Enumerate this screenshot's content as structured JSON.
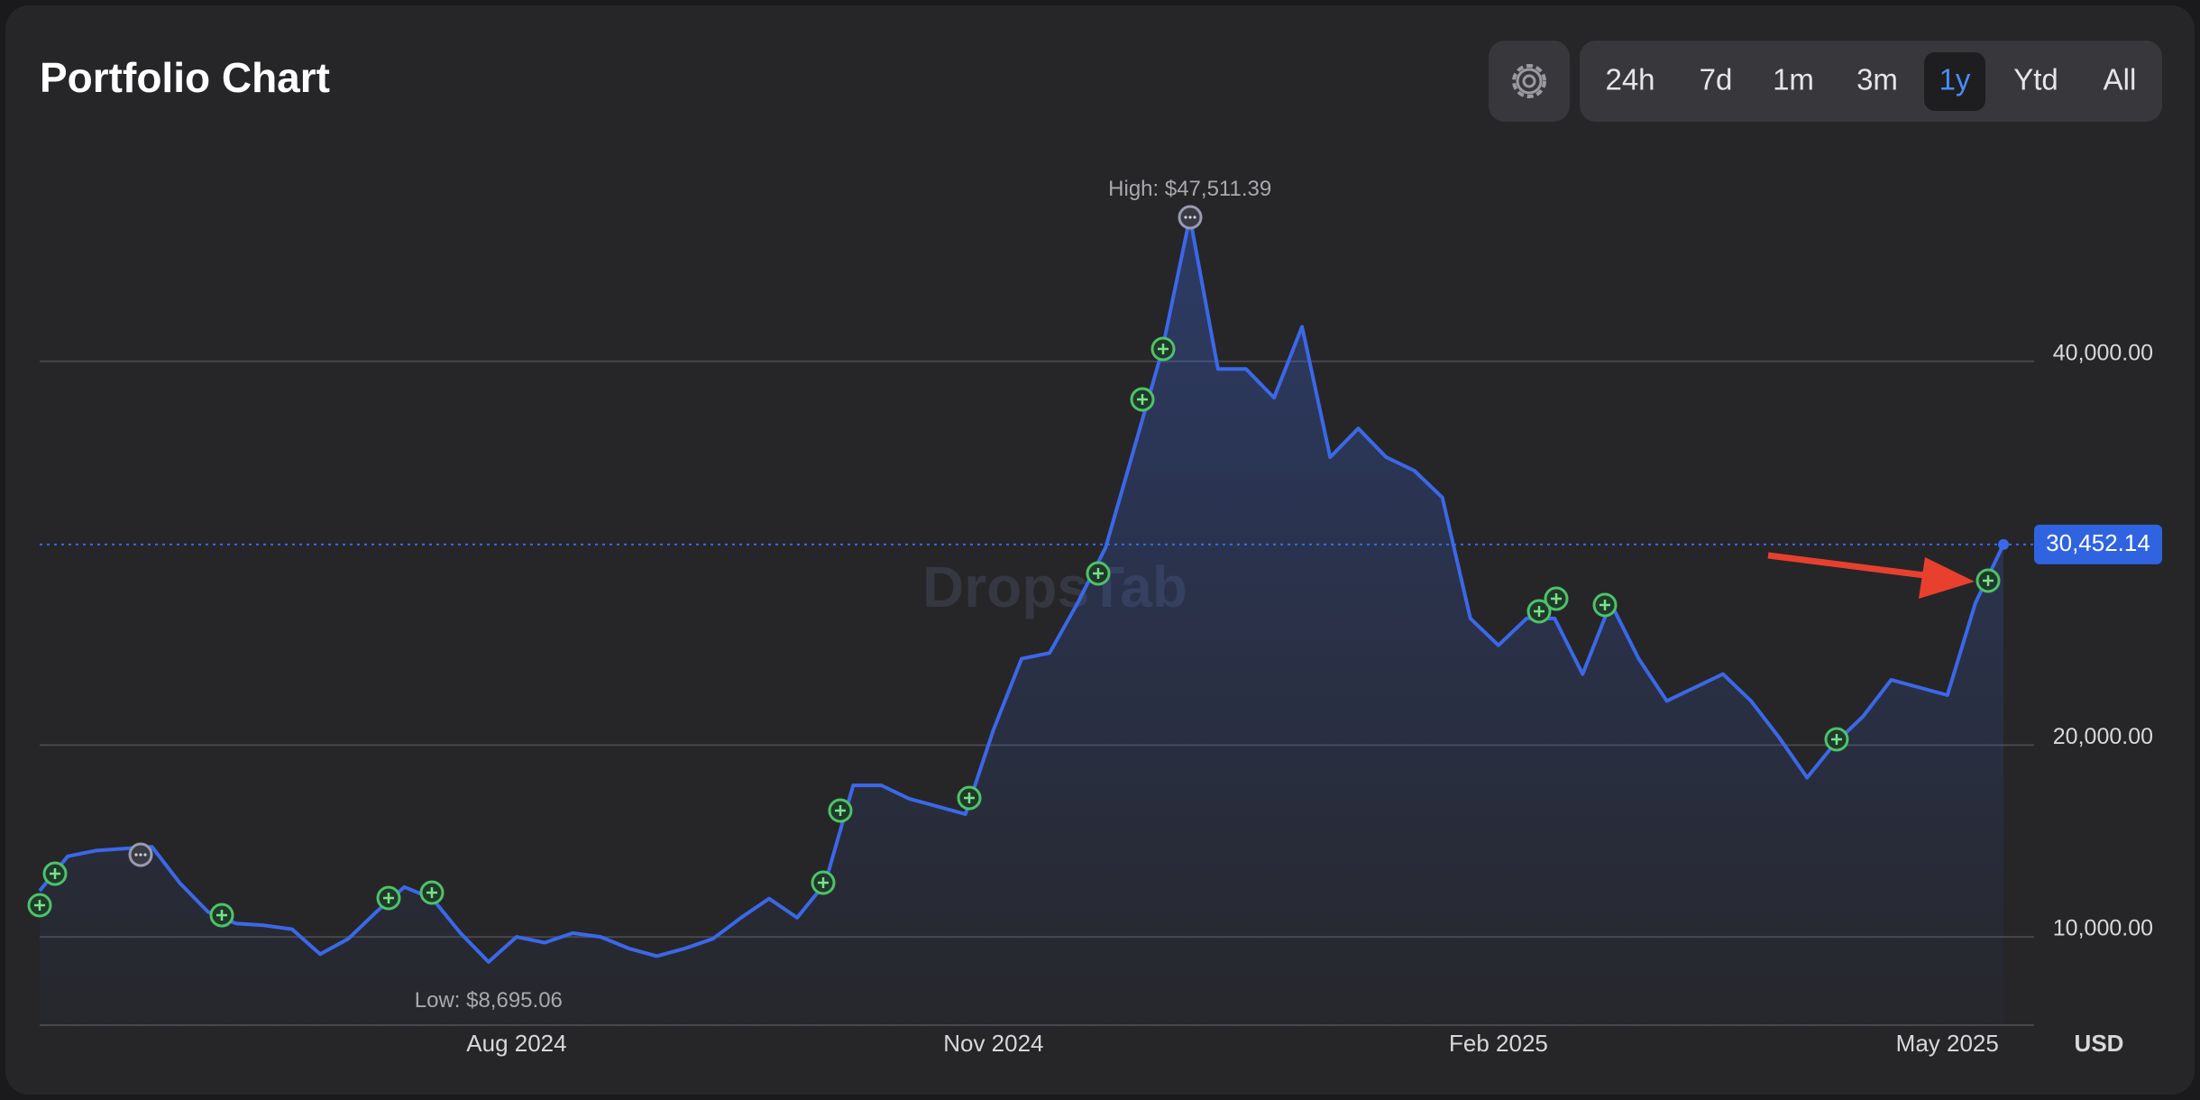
{
  "chart_data": {
    "type": "line",
    "title": "Portfolio Chart",
    "range_buttons": [
      "24h",
      "7d",
      "1m",
      "3m",
      "1y",
      "Ytd",
      "All"
    ],
    "selected_range": "1y",
    "watermark": "DropsTab",
    "y_unit": "USD",
    "annotations": {
      "high": "High: $47,511.39",
      "low": "Low: $8,695.06",
      "current": "30,452.14"
    },
    "color": "#3b68e8",
    "categories": [
      null,
      null,
      null,
      null,
      null,
      null,
      null,
      null,
      null,
      null,
      null,
      null,
      null,
      null,
      null,
      null,
      null,
      "Aug 2024",
      null,
      null,
      null,
      null,
      null,
      null,
      null,
      null,
      null,
      null,
      null,
      null,
      null,
      null,
      null,
      null,
      "Nov 2024",
      null,
      null,
      null,
      null,
      null,
      null,
      null,
      null,
      null,
      null,
      null,
      null,
      null,
      null,
      null,
      null,
      null,
      "Feb 2025",
      null,
      null,
      null,
      null,
      null,
      null,
      null,
      null,
      null,
      null,
      null,
      null,
      null,
      null,
      null,
      "May 2025",
      null,
      null
    ],
    "values": [
      12400,
      14200,
      14500,
      14600,
      14700,
      12800,
      11300,
      10700,
      10600,
      10400,
      9100,
      9900,
      11300,
      12600,
      12000,
      10200,
      8695.06,
      10000,
      9700,
      10200,
      10000,
      9400,
      9000,
      9400,
      9900,
      11000,
      12000,
      11000,
      12800,
      17900,
      17900,
      17200,
      16800,
      16400,
      20800,
      24500,
      24800,
      27400,
      30300,
      35400,
      40500,
      47511.39,
      39600,
      39600,
      38100,
      41800,
      35000,
      36500,
      35000,
      34300,
      32900,
      26600,
      25200,
      26600,
      26600,
      23700,
      27400,
      24500,
      22300,
      23000,
      23700,
      22300,
      20400,
      18300,
      20100,
      21500,
      23400,
      23000,
      22600,
      27400,
      30452.14
    ],
    "ylim": [
      5400,
      51500
    ],
    "yticks": [
      {
        "value": 10000,
        "label": "10,000.00"
      },
      {
        "value": 20000,
        "label": "20,000.00"
      },
      {
        "value": 40000,
        "label": "40,000.00"
      }
    ],
    "grid": true
  }
}
